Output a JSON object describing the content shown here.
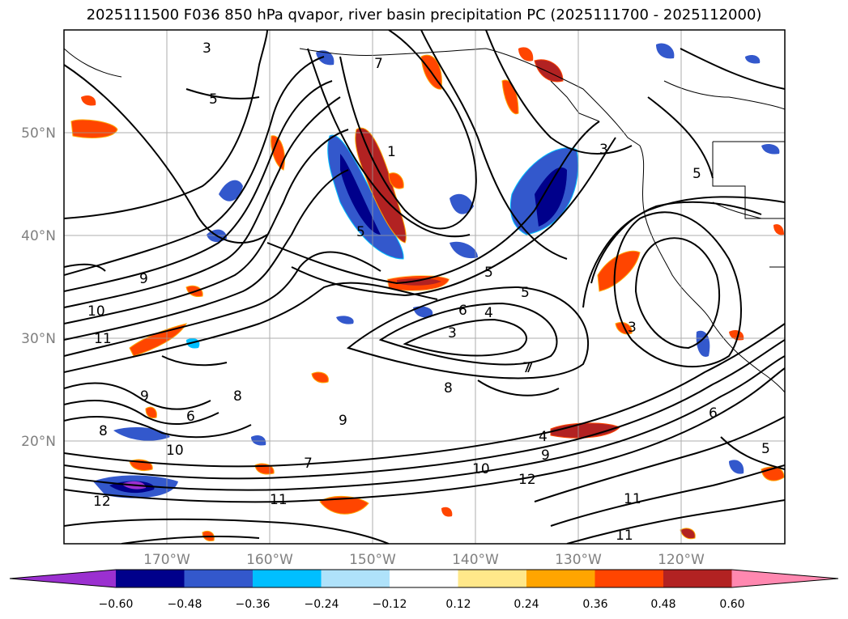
{
  "title": "2025111500 F036 850 hPa qvapor, river basin precipitation PC (2025111700 - 2025112000)",
  "map": {
    "lon_ticks": [
      "170°W",
      "160°W",
      "150°W",
      "140°W",
      "130°W",
      "120°W"
    ],
    "lat_ticks": [
      "50°N",
      "40°N",
      "30°N",
      "20°N"
    ],
    "lon_range": [
      -180,
      -110
    ],
    "lat_range": [
      10,
      60
    ],
    "grid": true,
    "contour_labels": [
      "3",
      "5",
      "7",
      "9",
      "10",
      "11",
      "12",
      "3",
      "4",
      "5",
      "6",
      "7",
      "8",
      "9",
      "10",
      "11",
      "12",
      "6",
      "8",
      "7",
      "5",
      "9",
      "4",
      "1",
      "5",
      "3",
      "3",
      "5",
      "7",
      "8",
      "9",
      "10",
      "11",
      "11",
      "6",
      "5"
    ]
  },
  "colorbar": {
    "ticks": [
      "−0.60",
      "−0.48",
      "−0.36",
      "−0.24",
      "−0.12",
      "0.12",
      "0.24",
      "0.36",
      "0.48",
      "0.60"
    ],
    "colors": [
      "#9b30d0",
      "#00008b",
      "#3358cc",
      "#00bfff",
      "#afe2fa",
      "#ffffff",
      "#ffe88a",
      "#ffa500",
      "#ff4500",
      "#b22222",
      "#ff88b0"
    ],
    "extend": "both"
  }
}
